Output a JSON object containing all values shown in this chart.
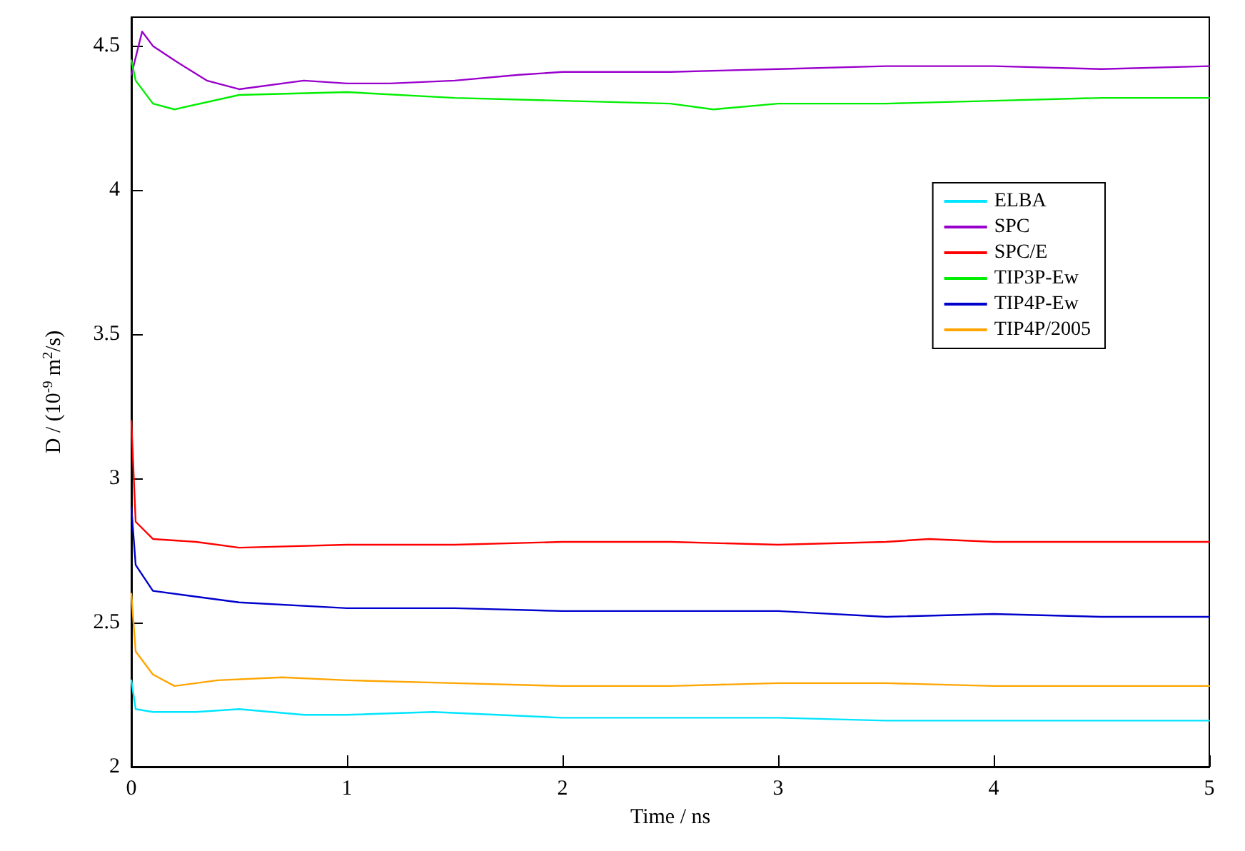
{
  "chart_data": {
    "type": "line",
    "xlabel": "Time / ns",
    "ylabel": "D / (10$^{-9}$ m$^{2}$/s)",
    "xlim": [
      0,
      5
    ],
    "xticks": [
      0,
      1,
      2,
      3,
      4,
      5
    ],
    "ylim": [
      2,
      4.6
    ],
    "yticks": [
      2,
      2.5,
      3,
      3.5,
      4,
      4.5
    ],
    "grid": false,
    "legend": "top right",
    "marker": "none",
    "line_style": "solid",
    "series": [
      {
        "name": "ELBA",
        "color": "#00e5ff",
        "x": [
          0,
          0.02,
          0.1,
          0.3,
          0.5,
          0.8,
          1,
          1.4,
          2,
          2.5,
          3,
          3.5,
          4,
          4.5,
          5
        ],
        "values": [
          2.3,
          2.2,
          2.19,
          2.19,
          2.2,
          2.18,
          2.18,
          2.19,
          2.17,
          2.17,
          2.17,
          2.16,
          2.16,
          2.16,
          2.16
        ]
      },
      {
        "name": "SPC",
        "color": "#9900cc",
        "x": [
          0,
          0.05,
          0.1,
          0.2,
          0.35,
          0.5,
          0.8,
          1,
          1.2,
          1.5,
          1.8,
          2,
          2.5,
          3,
          3.5,
          4,
          4.5,
          5
        ],
        "values": [
          4.4,
          4.55,
          4.5,
          4.45,
          4.38,
          4.35,
          4.38,
          4.37,
          4.37,
          4.38,
          4.4,
          4.41,
          4.41,
          4.42,
          4.43,
          4.43,
          4.42,
          4.43
        ]
      },
      {
        "name": "SPC/E",
        "color": "#ff0000",
        "x": [
          0,
          0.02,
          0.1,
          0.3,
          0.5,
          1,
          1.5,
          2,
          2.5,
          3,
          3.5,
          3.7,
          4,
          4.5,
          5
        ],
        "values": [
          3.2,
          2.85,
          2.79,
          2.78,
          2.76,
          2.77,
          2.77,
          2.78,
          2.78,
          2.77,
          2.78,
          2.79,
          2.78,
          2.78,
          2.78
        ]
      },
      {
        "name": "TIP3P-Ew",
        "color": "#00ee00",
        "x": [
          0,
          0.02,
          0.1,
          0.2,
          0.5,
          1,
          1.5,
          2,
          2.5,
          2.7,
          3,
          3.5,
          4,
          4.5,
          5
        ],
        "values": [
          4.45,
          4.38,
          4.3,
          4.28,
          4.33,
          4.34,
          4.32,
          4.31,
          4.3,
          4.28,
          4.3,
          4.3,
          4.31,
          4.32,
          4.32
        ]
      },
      {
        "name": "TIP4P-Ew",
        "color": "#0000cc",
        "x": [
          0,
          0.02,
          0.1,
          0.3,
          0.5,
          1,
          1.5,
          2,
          2.5,
          3,
          3.5,
          4,
          4.5,
          5
        ],
        "values": [
          2.9,
          2.7,
          2.61,
          2.59,
          2.57,
          2.55,
          2.55,
          2.54,
          2.54,
          2.54,
          2.52,
          2.53,
          2.52,
          2.52
        ]
      },
      {
        "name": "TIP4P/2005",
        "color": "#ffa500",
        "x": [
          0,
          0.02,
          0.1,
          0.2,
          0.4,
          0.7,
          1,
          1.5,
          2,
          2.5,
          3,
          3.5,
          4,
          4.5,
          5
        ],
        "values": [
          2.6,
          2.4,
          2.32,
          2.28,
          2.3,
          2.31,
          2.3,
          2.29,
          2.28,
          2.28,
          2.29,
          2.29,
          2.28,
          2.28,
          2.28
        ]
      }
    ]
  }
}
